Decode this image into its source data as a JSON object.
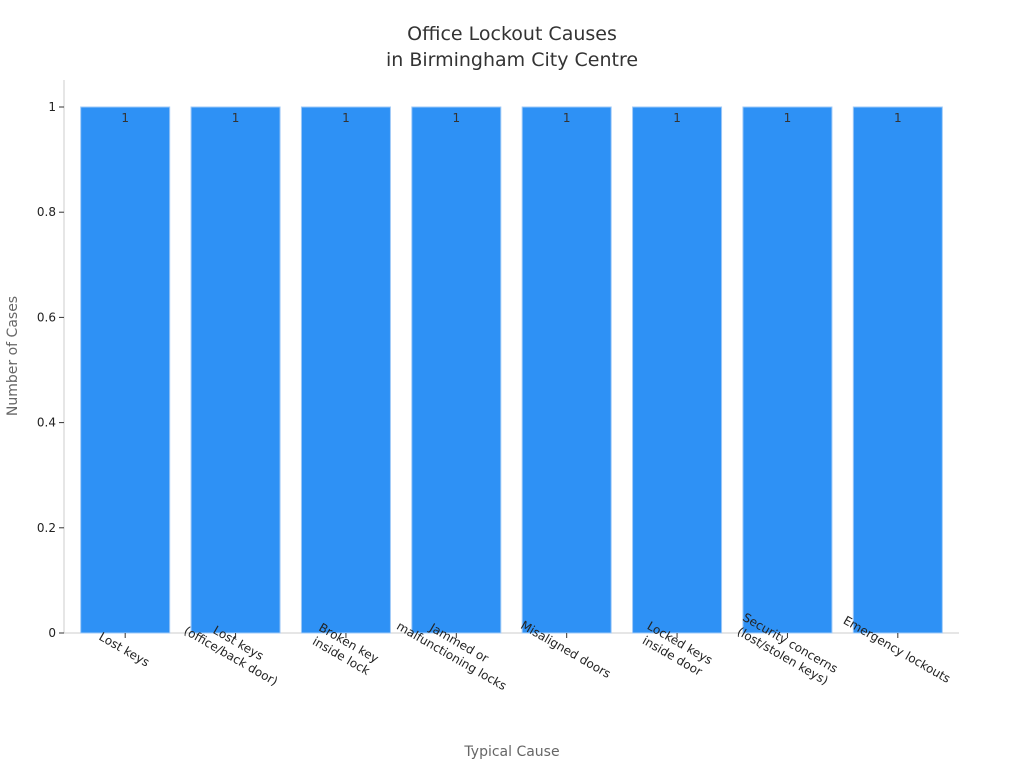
{
  "chart_data": {
    "type": "bar",
    "title": [
      "Office Lockout Causes",
      "in Birmingham City Centre"
    ],
    "xlabel": "Typical Cause",
    "ylabel": "Number of Cases",
    "categories": [
      [
        "Lost keys"
      ],
      [
        "Lost keys",
        "(office/back door)"
      ],
      [
        "Broken key",
        "inside lock"
      ],
      [
        "Jammed or",
        "malfunctioning locks"
      ],
      [
        "Misaligned doors"
      ],
      [
        "Locked keys",
        "inside door"
      ],
      [
        "Security concerns",
        "(lost/stolen keys)"
      ],
      [
        "Emergency lockouts"
      ]
    ],
    "values": [
      1,
      1,
      1,
      1,
      1,
      1,
      1,
      1
    ],
    "data_labels": [
      "1",
      "1",
      "1",
      "1",
      "1",
      "1",
      "1",
      "1"
    ],
    "ylim": [
      0,
      1
    ],
    "yticks": [
      0,
      0.2,
      0.4,
      0.6,
      0.8,
      1
    ],
    "ytick_labels": [
      "0",
      "0.2",
      "0.4",
      "0.6",
      "0.8",
      "1"
    ],
    "grid": false,
    "colors": {
      "bar": "#2e91f5",
      "bar_edge": "#9fc9f7",
      "axis": "#cccccc"
    }
  }
}
